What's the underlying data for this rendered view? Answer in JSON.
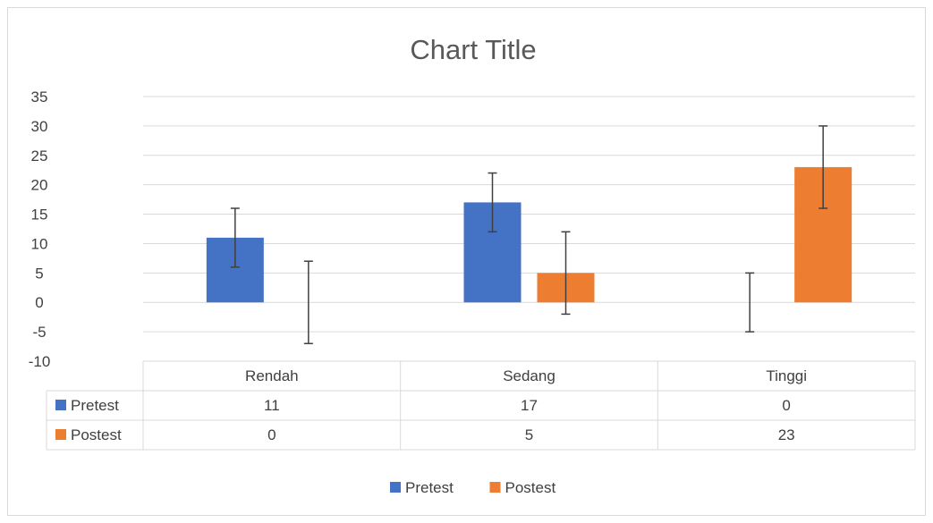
{
  "chart_data": {
    "type": "bar",
    "title": "Chart Title",
    "categories": [
      "Rendah",
      "Sedang",
      "Tinggi"
    ],
    "ylim": [
      -10,
      35
    ],
    "yticks": [
      35,
      30,
      25,
      20,
      15,
      10,
      5,
      0,
      -5,
      -10
    ],
    "grid": true,
    "legend": "bottom",
    "series": [
      {
        "name": "Pretest",
        "values": [
          11,
          17,
          0
        ],
        "error_low": [
          6,
          12,
          -5
        ],
        "error_high": [
          16,
          22,
          5
        ],
        "color": "#4472c4"
      },
      {
        "name": "Postest",
        "values": [
          0,
          5,
          23
        ],
        "error_low": [
          -7,
          -2,
          16
        ],
        "error_high": [
          7,
          12,
          30
        ],
        "color": "#ed7d31"
      }
    ],
    "data_table": true
  }
}
